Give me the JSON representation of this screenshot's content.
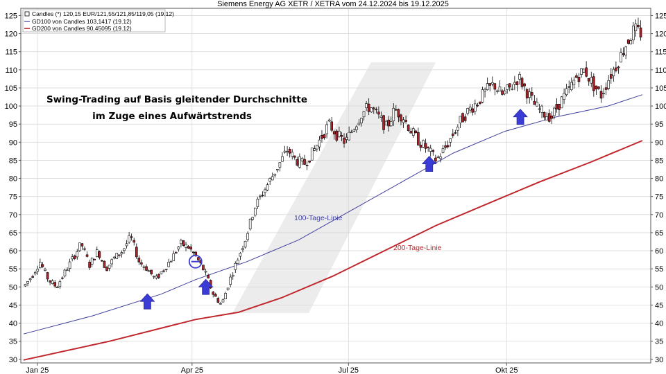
{
  "chart_data": {
    "type": "candlestick",
    "title": "Siemens Energy AG XETR / XETRA vom 24.12.2024 bis 19.12.2025",
    "legend": {
      "placement": "top-left",
      "entries": [
        {
          "label": "Candles (*) 120,15 EUR/121,55/121,85/119,05 (19.12)",
          "style": "box",
          "color": "#000000"
        },
        {
          "label": "GD100 von Candles 103,1417 (19.12)",
          "style": "line",
          "color": "#3f3f9f"
        },
        {
          "label": "GD200 von Candles 90,45095 (19.12)",
          "style": "line",
          "color": "#c0272d"
        }
      ]
    },
    "x_ticks": [
      {
        "label": "Jan 25",
        "day": 8
      },
      {
        "label": "Apr 25",
        "day": 98
      },
      {
        "label": "Jul 25",
        "day": 189
      },
      {
        "label": "Okt 25",
        "day": 281
      }
    ],
    "x_range_days": [
      0,
      360
    ],
    "ylim": [
      29,
      127
    ],
    "y_ticks": [
      30,
      35,
      40,
      45,
      50,
      55,
      60,
      65,
      70,
      75,
      80,
      85,
      90,
      95,
      100,
      105,
      110,
      115,
      120,
      125
    ],
    "grid": true,
    "candle_keys": [
      50,
      53,
      57,
      52,
      50,
      54,
      58,
      62,
      56,
      60,
      55,
      58,
      60,
      64,
      57,
      55,
      52,
      55,
      58,
      62,
      61,
      58,
      54,
      48,
      45,
      52,
      58,
      64,
      72,
      76,
      80,
      84,
      88,
      85,
      84,
      87,
      91,
      95,
      92,
      90,
      94,
      98,
      100,
      97,
      94,
      99,
      97,
      93,
      90,
      88,
      85,
      88,
      92,
      96,
      99,
      101,
      104,
      106,
      103,
      105,
      108,
      104,
      100,
      98,
      97,
      101,
      104,
      108,
      110,
      106,
      103,
      108,
      112,
      117,
      121,
      120
    ],
    "series": [
      {
        "name": "Candles",
        "type": "candlestick"
      },
      {
        "name": "GD100",
        "type": "line",
        "color": "#3f3f9f",
        "x": [
          0,
          40,
          80,
          100,
          130,
          160,
          190,
          220,
          250,
          280,
          310,
          340,
          360
        ],
        "values": [
          37,
          42,
          48,
          52,
          57,
          63,
          71,
          79,
          87,
          93,
          97,
          100,
          103.14
        ]
      },
      {
        "name": "GD200",
        "type": "line",
        "color": "#c0272d",
        "x": [
          0,
          50,
          100,
          125,
          150,
          180,
          210,
          240,
          270,
          300,
          330,
          360
        ],
        "values": [
          29.8,
          35,
          41,
          43,
          47,
          53,
          60,
          67,
          73,
          79,
          84.5,
          90.45
        ]
      }
    ],
    "annotations": [
      {
        "text": "Swing-Trading auf Basis gleitender Durchschnitte",
        "kind": "text"
      },
      {
        "text": "im Zuge eines Aufwärtstrends",
        "kind": "text"
      },
      {
        "text": "100-Tage-Linie",
        "kind": "label",
        "color": "#3f3f9f"
      },
      {
        "text": "200-Tage-Linie",
        "kind": "label",
        "color": "#c0272d"
      }
    ],
    "markers": [
      {
        "kind": "up-arrow",
        "day": 72,
        "value": 46
      },
      {
        "kind": "up-arrow",
        "day": 106,
        "value": 50
      },
      {
        "kind": "up-arrow",
        "day": 236,
        "value": 84
      },
      {
        "kind": "up-arrow",
        "day": 289,
        "value": 97
      },
      {
        "kind": "circle-minus",
        "day": 100,
        "value": 57
      }
    ],
    "colors": {
      "up": "#ffffff",
      "down": "#b0212a",
      "wick": "#000000",
      "grid": "#d9d9d9",
      "arrow": "#3b3bd6",
      "watermark": "#ececec"
    }
  }
}
